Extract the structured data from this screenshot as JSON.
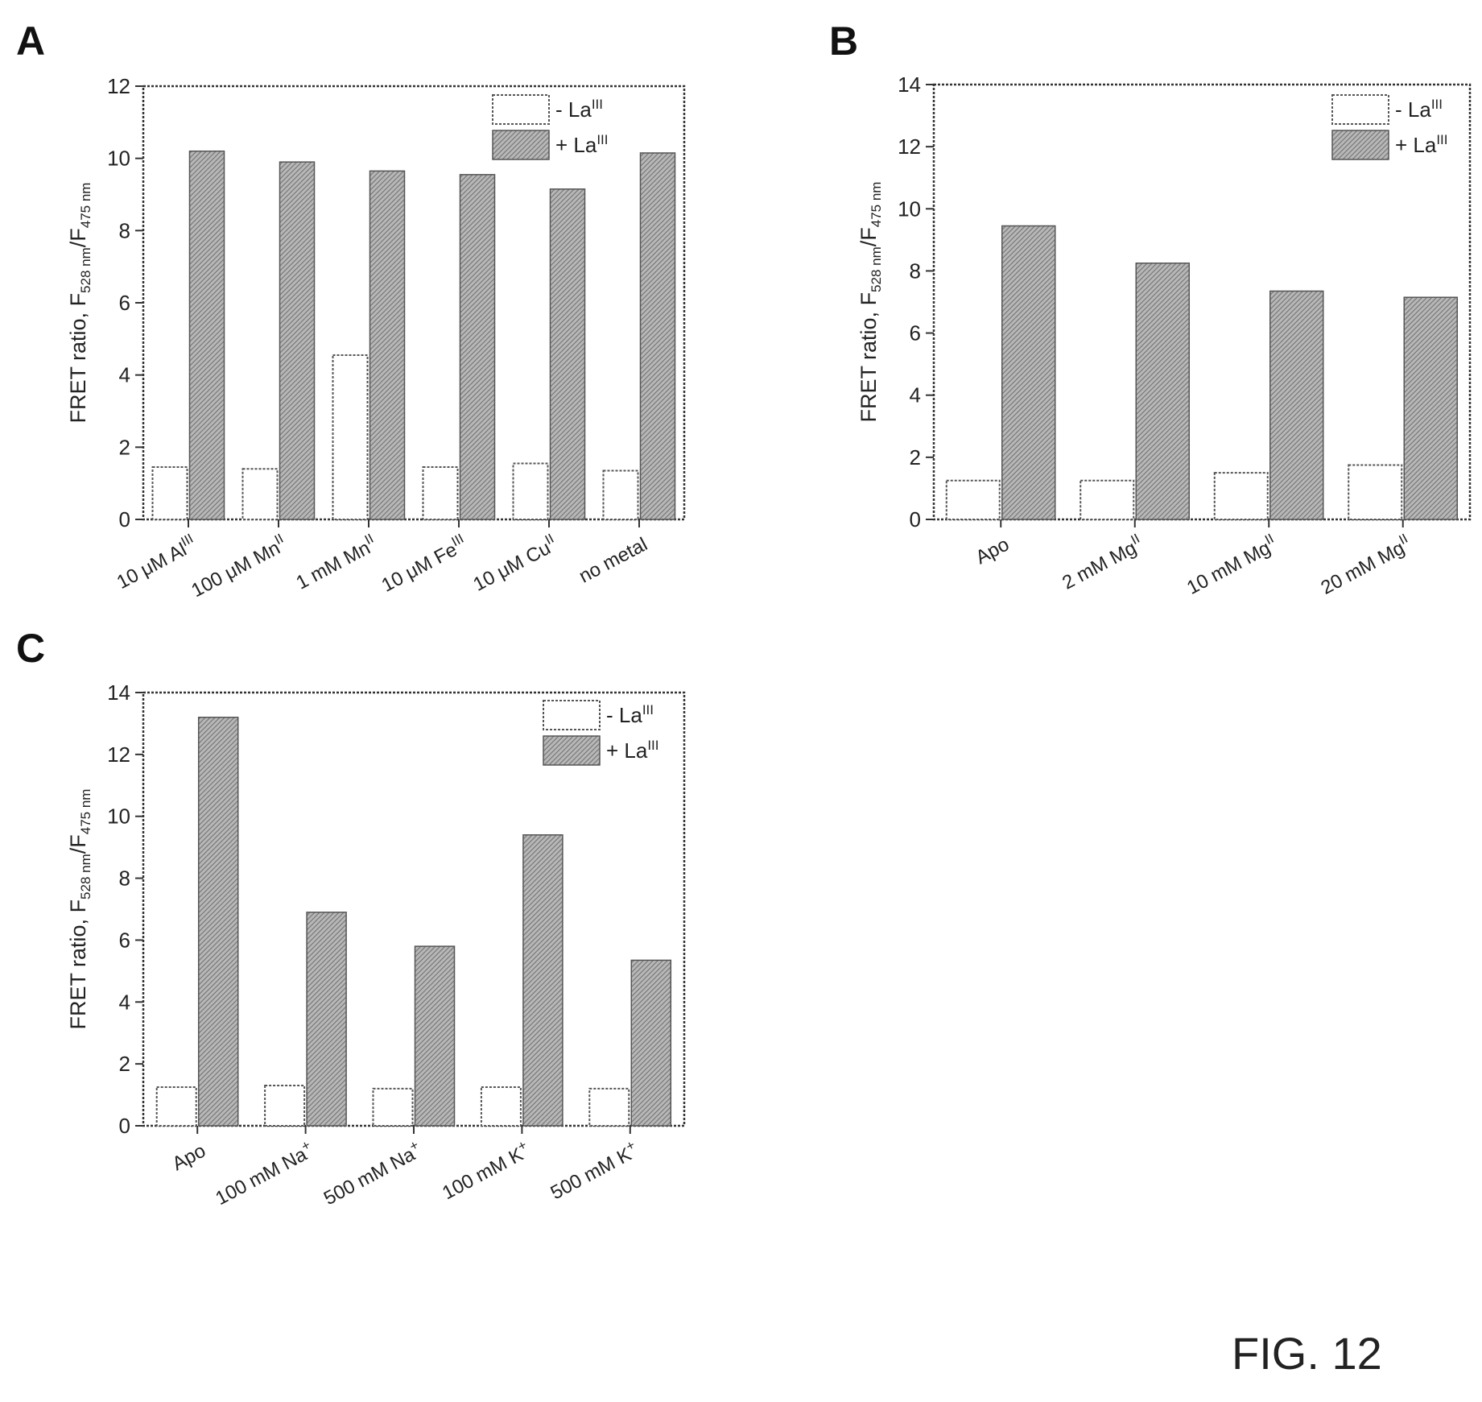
{
  "figure_label": "FIG. 12",
  "legend": {
    "minus": "- La",
    "plus": "+ La",
    "superscript": "III"
  },
  "ylabel": {
    "main": "FRET ratio, F",
    "num_sub": "528 nm",
    "slash": "/F",
    "den_sub": "475 nm"
  },
  "chart_data": [
    {
      "panel": "A",
      "type": "bar",
      "categories": [
        "10 μM Al",
        "100 μM Mn",
        "1 mM Mn",
        "10 μM  Fe",
        "10 μM Cu",
        "no metal"
      ],
      "category_superscripts": [
        "III",
        "II",
        "II",
        "III",
        "II",
        ""
      ],
      "ylim": [
        0,
        12
      ],
      "yticks": [
        0,
        2,
        4,
        6,
        8,
        10,
        12
      ],
      "series": [
        {
          "name": "- La",
          "values": [
            1.45,
            1.4,
            4.55,
            1.45,
            1.55,
            1.35
          ]
        },
        {
          "name": "+ La",
          "values": [
            10.2,
            9.9,
            9.65,
            9.55,
            9.15,
            10.15
          ]
        }
      ],
      "legend_position": "top-right"
    },
    {
      "panel": "B",
      "type": "bar",
      "categories": [
        "Apo",
        "2 mM Mg",
        "10 mM Mg",
        "20 mM Mg"
      ],
      "category_superscripts": [
        "",
        "II",
        "II",
        "II"
      ],
      "ylim": [
        0,
        14
      ],
      "yticks": [
        0,
        2,
        4,
        6,
        8,
        10,
        12,
        14
      ],
      "series": [
        {
          "name": "- La",
          "values": [
            1.25,
            1.25,
            1.5,
            1.75
          ]
        },
        {
          "name": "+ La",
          "values": [
            9.45,
            8.25,
            7.35,
            7.15
          ]
        }
      ],
      "legend_position": "top-right"
    },
    {
      "panel": "C",
      "type": "bar",
      "categories": [
        "Apo",
        "100 mM Na",
        "500 mM Na",
        "100 mM K",
        "500 mM K"
      ],
      "category_superscripts": [
        "",
        "+",
        "+",
        "+",
        "+"
      ],
      "ylim": [
        0,
        14
      ],
      "yticks": [
        0,
        2,
        4,
        6,
        8,
        10,
        12,
        14
      ],
      "series": [
        {
          "name": "- La",
          "values": [
            1.25,
            1.3,
            1.2,
            1.25,
            1.2
          ]
        },
        {
          "name": "+ La",
          "values": [
            13.2,
            6.9,
            5.8,
            9.4,
            5.35
          ]
        }
      ],
      "legend_position": "top-right"
    }
  ]
}
